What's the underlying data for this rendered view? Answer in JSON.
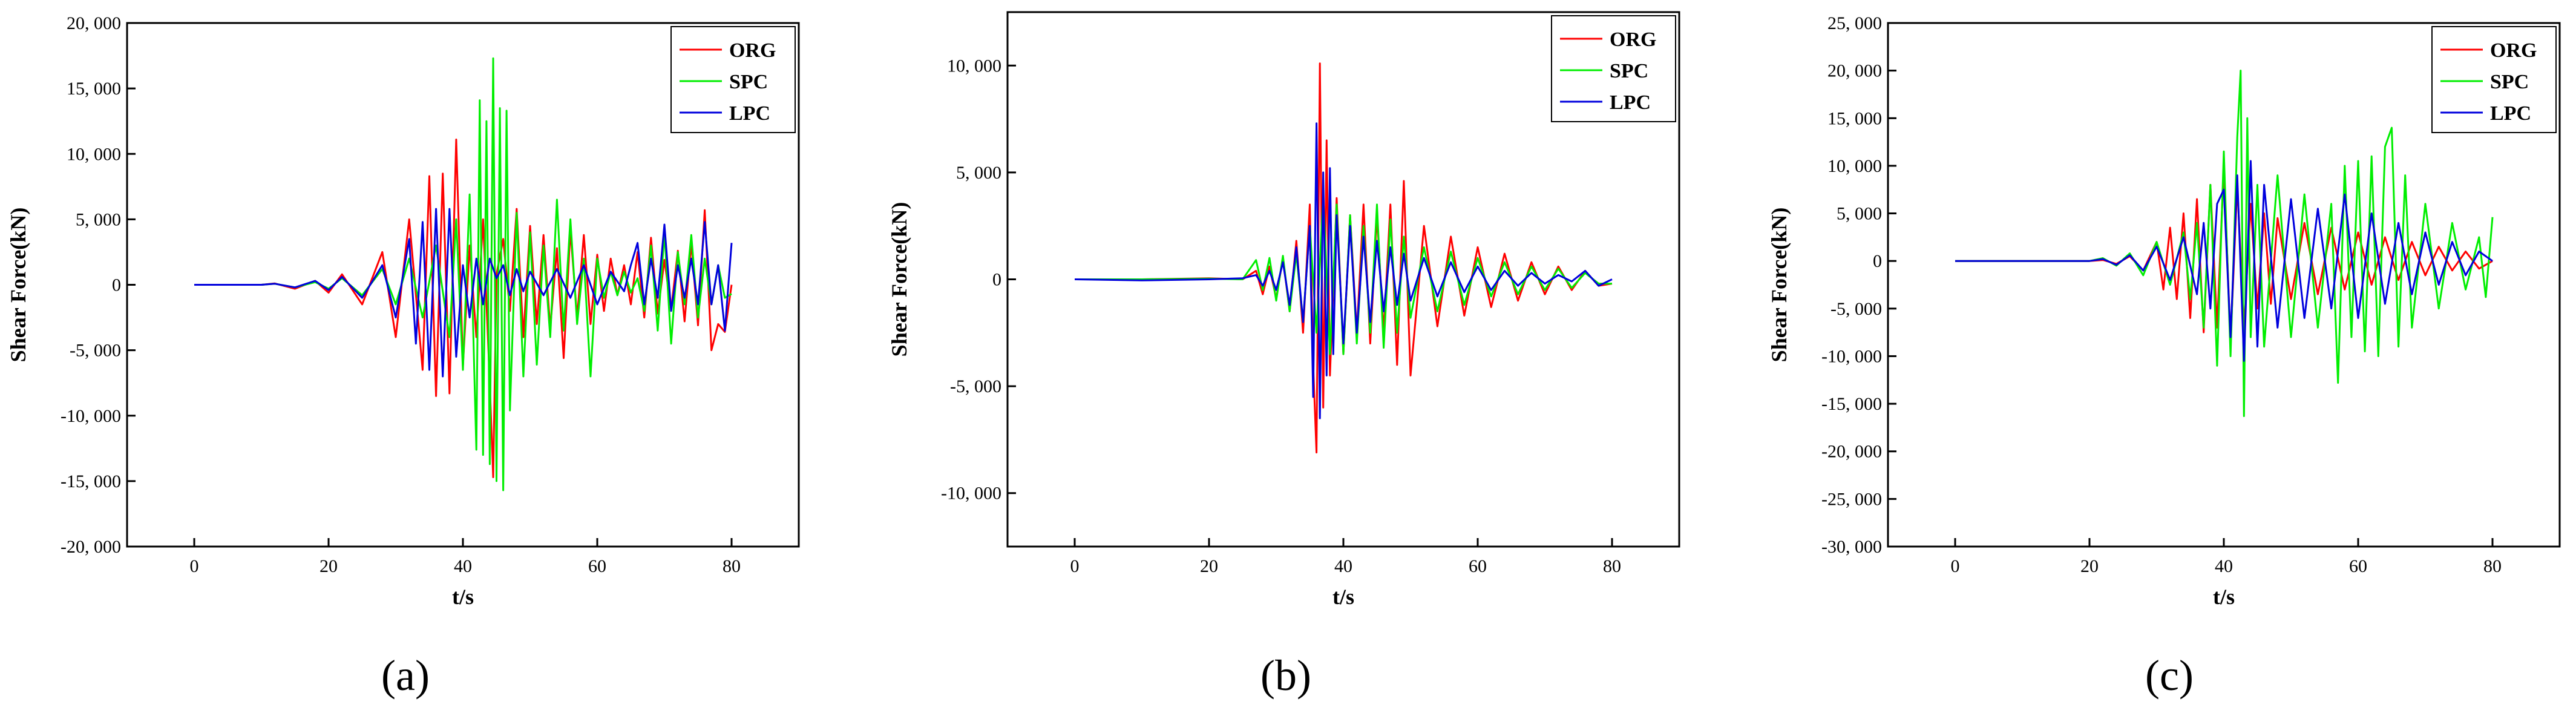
{
  "colors": {
    "ORG": "#ff0000",
    "SPC": "#00ee00",
    "LPC": "#0000dd",
    "axis": "#000000",
    "background": "#ffffff"
  },
  "chart_data": [
    {
      "panel": "(a)",
      "type": "line",
      "xlabel": "t/s",
      "ylabel": "Shear Force(kN)",
      "xlim": [
        -10,
        90
      ],
      "ylim": [
        -20000,
        20000
      ],
      "xticks": [
        0,
        20,
        40,
        60,
        80
      ],
      "xtick_labels": [
        "0",
        "20",
        "40",
        "60",
        "80"
      ],
      "yticks": [
        -20000,
        -15000,
        -10000,
        -5000,
        0,
        5000,
        10000,
        15000,
        20000
      ],
      "ytick_labels": [
        "-20, 000",
        "-15, 000",
        "-10, 000",
        "-5, 000",
        "0",
        "5, 000",
        "10, 000",
        "15, 000",
        "20, 000"
      ],
      "legend": {
        "position": "top-right",
        "entries": [
          "ORG",
          "SPC",
          "LPC"
        ]
      },
      "grid": false,
      "series": [
        {
          "name": "ORG",
          "t": [
            0,
            10,
            12,
            15,
            18,
            20,
            22,
            25,
            28,
            30,
            32,
            34,
            35,
            36,
            37,
            38,
            39,
            40,
            41,
            42,
            43,
            44,
            44.5,
            45,
            46,
            47,
            48,
            49,
            50,
            51,
            52,
            53,
            54,
            55,
            56,
            57,
            58,
            59,
            60,
            61,
            62,
            63,
            64,
            65,
            66,
            67,
            68,
            69,
            70,
            71,
            72,
            73,
            74,
            75,
            76,
            77,
            78,
            79,
            80
          ],
          "values": [
            0,
            0,
            100,
            -300,
            300,
            -600,
            800,
            -1500,
            2500,
            -4000,
            5000,
            -6500,
            8300,
            -8500,
            8500,
            -8300,
            11100,
            -6200,
            3000,
            -4000,
            5000,
            -7500,
            -14700,
            800,
            3500,
            -2000,
            5800,
            -4000,
            4500,
            -3000,
            3800,
            -3300,
            2800,
            -5600,
            4200,
            -2500,
            3800,
            -3000,
            2300,
            -2000,
            2000,
            -800,
            1500,
            -1500,
            2500,
            -2500,
            3600,
            -2200,
            1900,
            -1900,
            2600,
            -2800,
            3200,
            -3100,
            5700,
            -5000,
            -3000,
            -3600,
            0
          ]
        },
        {
          "name": "SPC",
          "t": [
            0,
            10,
            12,
            15,
            18,
            20,
            22,
            25,
            28,
            30,
            32,
            34,
            36,
            38,
            39,
            40,
            41,
            42,
            42.5,
            43,
            43.5,
            44,
            44.5,
            45,
            45.5,
            46,
            46.5,
            47,
            48,
            49,
            50,
            51,
            52,
            53,
            54,
            55,
            56,
            57,
            58,
            59,
            60,
            61,
            62,
            63,
            64,
            65,
            66,
            67,
            68,
            69,
            70,
            71,
            72,
            73,
            74,
            75,
            76,
            77,
            78,
            79,
            80
          ],
          "values": [
            0,
            0,
            80,
            -200,
            200,
            -300,
            500,
            -800,
            1200,
            -1500,
            2000,
            -2500,
            3000,
            -4000,
            5000,
            -6500,
            6900,
            -12600,
            14100,
            -13000,
            12500,
            -13700,
            17300,
            -15000,
            13500,
            -15700,
            13300,
            -9600,
            5500,
            -7000,
            4000,
            -6100,
            3000,
            -4000,
            6500,
            -3500,
            5000,
            -3000,
            2000,
            -7000,
            2000,
            -1000,
            1000,
            -800,
            1000,
            -600,
            500,
            -2000,
            3000,
            -3500,
            4000,
            -4500,
            2500,
            -1500,
            3800,
            -2500,
            2000,
            -1500,
            1500,
            -1000,
            -700
          ]
        },
        {
          "name": "LPC",
          "t": [
            0,
            10,
            12,
            15,
            18,
            20,
            22,
            25,
            28,
            30,
            32,
            33,
            34,
            35,
            36,
            37,
            38,
            39,
            40,
            41,
            42,
            43,
            44,
            45,
            46,
            47,
            48,
            49,
            50,
            52,
            54,
            56,
            58,
            60,
            62,
            64,
            65,
            66,
            67,
            68,
            69,
            70,
            71,
            72,
            73,
            74,
            75,
            76,
            77,
            78,
            79,
            80
          ],
          "values": [
            0,
            0,
            80,
            -200,
            300,
            -400,
            600,
            -1000,
            1500,
            -2500,
            3500,
            -4500,
            4800,
            -6500,
            5800,
            -7000,
            5800,
            -5500,
            1500,
            -2500,
            2000,
            -1500,
            2000,
            500,
            1500,
            -800,
            1200,
            -500,
            1000,
            -800,
            1200,
            -1000,
            1500,
            -1500,
            1000,
            -500,
            1500,
            3200,
            -1500,
            2000,
            -1000,
            4600,
            -2000,
            1500,
            -1000,
            2000,
            -1500,
            4800,
            -1500,
            1500,
            -3500,
            3200
          ]
        }
      ]
    },
    {
      "panel": "(b)",
      "type": "line",
      "xlabel": "t/s",
      "ylabel": "Shear Force(kN)",
      "xlim": [
        -10,
        90
      ],
      "ylim": [
        -12500,
        12500
      ],
      "xticks": [
        0,
        20,
        40,
        60,
        80
      ],
      "xtick_labels": [
        "0",
        "20",
        "40",
        "60",
        "80"
      ],
      "yticks": [
        -10000,
        -5000,
        0,
        5000,
        10000
      ],
      "ytick_labels": [
        "-10, 000",
        "-5, 000",
        "0",
        "5, 000",
        "10, 000"
      ],
      "legend": {
        "position": "top-right",
        "entries": [
          "ORG",
          "SPC",
          "LPC"
        ]
      },
      "grid": false,
      "series": [
        {
          "name": "ORG",
          "t": [
            0,
            10,
            20,
            25,
            27,
            28,
            29,
            30,
            31,
            32,
            33,
            34,
            35,
            35.5,
            36,
            36.5,
            37,
            37.5,
            38,
            39,
            40,
            41,
            42,
            43,
            44,
            45,
            46,
            47,
            48,
            49,
            50,
            52,
            54,
            56,
            58,
            60,
            62,
            64,
            66,
            68,
            70,
            72,
            74,
            76,
            78,
            80
          ],
          "values": [
            0,
            0,
            50,
            0,
            400,
            -700,
            600,
            -900,
            1000,
            -1500,
            1800,
            -2500,
            3500,
            -4000,
            -8100,
            10100,
            -6000,
            6500,
            -4500,
            3800,
            -3500,
            3000,
            -2500,
            3500,
            -3000,
            3000,
            -2500,
            3500,
            -4000,
            4600,
            -4500,
            2500,
            -2200,
            2000,
            -1700,
            1500,
            -1300,
            1200,
            -1000,
            800,
            -700,
            600,
            -500,
            400,
            -300,
            -200
          ]
        },
        {
          "name": "SPC",
          "t": [
            0,
            10,
            20,
            25,
            27,
            28,
            29,
            30,
            31,
            32,
            33,
            34,
            35,
            36,
            37,
            38,
            39,
            40,
            41,
            42,
            43,
            44,
            45,
            46,
            47,
            48,
            49,
            50,
            52,
            54,
            56,
            58,
            60,
            62,
            64,
            66,
            68,
            70,
            72,
            74,
            76,
            78,
            80
          ],
          "values": [
            0,
            0,
            30,
            0,
            900,
            -500,
            1000,
            -1000,
            1100,
            -1500,
            1200,
            -2000,
            2500,
            -2500,
            4000,
            -3500,
            3500,
            -3500,
            3000,
            -3000,
            2500,
            -2500,
            3500,
            -3200,
            2800,
            -2500,
            2000,
            -1800,
            1500,
            -1500,
            1300,
            -1200,
            1000,
            -800,
            800,
            -700,
            600,
            -500,
            500,
            -400,
            300,
            -200,
            -200
          ]
        },
        {
          "name": "LPC",
          "t": [
            0,
            10,
            20,
            25,
            27,
            28,
            29,
            30,
            31,
            32,
            33,
            34,
            35,
            35.5,
            36,
            36.5,
            37,
            37.5,
            38,
            38.5,
            39,
            40,
            41,
            42,
            43,
            44,
            45,
            46,
            47,
            48,
            49,
            50,
            52,
            54,
            56,
            58,
            60,
            62,
            64,
            66,
            68,
            70,
            72,
            74,
            76,
            78,
            80
          ],
          "values": [
            0,
            -50,
            0,
            50,
            200,
            -300,
            400,
            -500,
            800,
            -1200,
            1500,
            -2000,
            2500,
            -5500,
            7300,
            -6500,
            5000,
            -4500,
            5200,
            -3500,
            3000,
            -3000,
            2500,
            -2500,
            2000,
            -2000,
            1800,
            -1500,
            1500,
            -1200,
            1200,
            -1000,
            1000,
            -800,
            800,
            -600,
            600,
            -500,
            400,
            -300,
            300,
            -200,
            200,
            -100,
            400,
            -300,
            0
          ]
        }
      ]
    },
    {
      "panel": "(c)",
      "type": "line",
      "xlabel": "t/s",
      "ylabel": "Shear Force(kN)",
      "xlim": [
        -10,
        90
      ],
      "ylim": [
        -30000,
        25000
      ],
      "xticks": [
        0,
        20,
        40,
        60,
        80
      ],
      "xtick_labels": [
        "0",
        "20",
        "40",
        "60",
        "80"
      ],
      "yticks": [
        -30000,
        -25000,
        -20000,
        -15000,
        -10000,
        -5000,
        0,
        5000,
        10000,
        15000,
        20000,
        25000
      ],
      "ytick_labels": [
        "-30, 000",
        "-25, 000",
        "-20, 000",
        "-15, 000",
        "-10, 000",
        "-5, 000",
        "0",
        "5, 000",
        "10, 000",
        "15, 000",
        "20, 000",
        "25, 000"
      ],
      "legend": {
        "position": "top-right",
        "entries": [
          "ORG",
          "SPC",
          "LPC"
        ]
      },
      "grid": false,
      "series": [
        {
          "name": "ORG",
          "t": [
            0,
            20,
            22,
            24,
            26,
            28,
            30,
            31,
            32,
            33,
            34,
            35,
            36,
            37,
            38,
            39,
            40,
            41,
            42,
            43,
            44,
            45,
            46,
            47,
            48,
            50,
            52,
            54,
            56,
            58,
            60,
            62,
            64,
            66,
            68,
            70,
            72,
            74,
            76,
            78,
            80
          ],
          "values": [
            0,
            0,
            100,
            -300,
            500,
            -1000,
            2000,
            -3000,
            3500,
            -4000,
            5000,
            -6000,
            6500,
            -7500,
            8000,
            -7000,
            10000,
            -8500,
            8000,
            -7000,
            6000,
            -5000,
            5000,
            -4500,
            4500,
            -4000,
            4000,
            -3500,
            3500,
            -3000,
            3000,
            -2500,
            2500,
            -2000,
            2000,
            -1500,
            1500,
            -1000,
            1000,
            -800,
            0
          ]
        },
        {
          "name": "SPC",
          "t": [
            0,
            20,
            22,
            24,
            26,
            28,
            30,
            32,
            34,
            35,
            36,
            37,
            38,
            39,
            40,
            41,
            42,
            42.5,
            43,
            43.5,
            44,
            45,
            46,
            48,
            50,
            52,
            54,
            56,
            57,
            58,
            59,
            60,
            61,
            62,
            63,
            64,
            65,
            66,
            67,
            68,
            70,
            72,
            74,
            76,
            78,
            79,
            80
          ],
          "values": [
            0,
            0,
            300,
            -500,
            800,
            -1500,
            2000,
            -2500,
            3000,
            -4000,
            4000,
            -7000,
            8000,
            -11000,
            11500,
            -10000,
            13000,
            20000,
            -16300,
            15000,
            -8000,
            8000,
            -9000,
            9000,
            -8000,
            7000,
            -7000,
            6000,
            -12800,
            10000,
            -8000,
            10500,
            -9500,
            11000,
            -10000,
            12000,
            14000,
            -9000,
            9000,
            -7000,
            6000,
            -5000,
            4000,
            -3000,
            2500,
            -3800,
            4600
          ]
        },
        {
          "name": "LPC",
          "t": [
            0,
            20,
            22,
            24,
            26,
            28,
            30,
            32,
            34,
            36,
            37,
            38,
            39,
            40,
            41,
            42,
            43,
            44,
            45,
            46,
            48,
            50,
            52,
            54,
            56,
            58,
            60,
            62,
            64,
            66,
            68,
            70,
            72,
            74,
            76,
            78,
            80
          ],
          "values": [
            0,
            0,
            200,
            -400,
            600,
            -1000,
            1500,
            -2000,
            2500,
            -3500,
            4000,
            -5000,
            6000,
            7500,
            -8000,
            9000,
            -10500,
            10500,
            -9000,
            8000,
            -7000,
            6500,
            -6000,
            5500,
            -5000,
            7000,
            -6000,
            5000,
            -4500,
            4000,
            -3500,
            3000,
            -2500,
            2000,
            -1500,
            1000,
            0
          ]
        }
      ]
    }
  ]
}
